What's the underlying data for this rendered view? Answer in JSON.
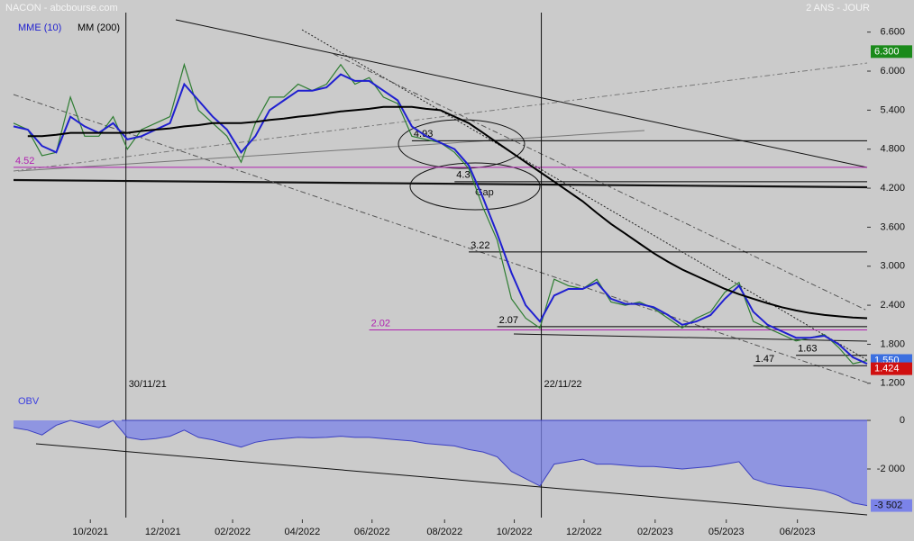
{
  "chart_data": {
    "type": "line",
    "title": "NACON - abcbourse.com",
    "subtitle": "2 ANS - JOUR",
    "x": [
      0,
      1,
      2,
      3,
      4,
      5,
      6,
      7,
      8,
      9,
      10,
      11,
      12,
      13,
      14,
      15,
      16,
      17,
      18,
      19,
      20,
      21,
      22,
      23,
      24,
      25,
      26,
      27,
      28,
      29,
      30,
      31,
      32,
      33,
      34,
      35,
      36,
      37,
      38,
      39,
      40,
      41,
      42,
      43,
      44,
      45,
      46,
      47,
      48,
      49,
      50,
      51,
      52,
      53,
      54,
      55,
      56,
      57,
      58,
      59,
      60
    ],
    "xlim": [
      0,
      60
    ],
    "xticks": [
      {
        "value": 5.4,
        "label": "10/2021"
      },
      {
        "value": 10.5,
        "label": "12/2021"
      },
      {
        "value": 15.4,
        "label": "02/2022"
      },
      {
        "value": 20.3,
        "label": "04/2022"
      },
      {
        "value": 25.2,
        "label": "06/2022"
      },
      {
        "value": 30.3,
        "label": "08/2022"
      },
      {
        "value": 35.2,
        "label": "10/2022"
      },
      {
        "value": 40.1,
        "label": "12/2022"
      },
      {
        "value": 45.1,
        "label": "02/2023"
      },
      {
        "value": 50.1,
        "label": "05/2023"
      },
      {
        "value": 55.1,
        "label": "06/2023"
      }
    ],
    "ylim": [
      1.1,
      6.9
    ],
    "yticks": [
      {
        "value": 1.2,
        "label": "1.200"
      },
      {
        "value": 1.8,
        "label": "1.800"
      },
      {
        "value": 2.4,
        "label": "2.400"
      },
      {
        "value": 3.0,
        "label": "3.000"
      },
      {
        "value": 3.6,
        "label": "3.600"
      },
      {
        "value": 4.2,
        "label": "4.200"
      },
      {
        "value": 4.8,
        "label": "4.800"
      },
      {
        "value": 5.4,
        "label": "5.400"
      },
      {
        "value": 6.0,
        "label": "6.000"
      },
      {
        "value": 6.6,
        "label": "6.600"
      }
    ],
    "y2lim": [
      -4000,
      1000
    ],
    "y2ticks": [
      0,
      {
        "value": -2000,
        "label": "-2 000"
      }
    ],
    "series": [
      {
        "color": "#2e7d32",
        "values": [
          5.2,
          5.1,
          4.7,
          4.75,
          5.6,
          5.0,
          5.0,
          5.3,
          4.8,
          5.1,
          5.2,
          5.3,
          6.1,
          5.4,
          5.2,
          5.0,
          4.6,
          5.2,
          5.6,
          5.6,
          5.8,
          5.7,
          5.8,
          6.1,
          5.8,
          5.9,
          5.6,
          5.5,
          5.0,
          4.95,
          4.9,
          4.75,
          4.5,
          3.9,
          3.4,
          2.5,
          2.2,
          2.05,
          2.8,
          2.7,
          2.65,
          2.8,
          2.45,
          2.4,
          2.45,
          2.35,
          2.2,
          2.05,
          2.2,
          2.3,
          2.6,
          2.75,
          2.15,
          2.05,
          1.95,
          1.85,
          1.9,
          1.95,
          1.75,
          1.5,
          1.55
        ]
      },
      {
        "name": "MME (10)",
        "color": "#1f1fd0",
        "values": [
          5.15,
          5.1,
          4.85,
          4.75,
          5.3,
          5.15,
          5.05,
          5.2,
          4.95,
          5.0,
          5.1,
          5.2,
          5.8,
          5.55,
          5.3,
          5.1,
          4.75,
          5.0,
          5.4,
          5.55,
          5.7,
          5.7,
          5.75,
          5.95,
          5.85,
          5.85,
          5.7,
          5.55,
          5.15,
          5.0,
          4.9,
          4.8,
          4.55,
          4.05,
          3.5,
          2.9,
          2.4,
          2.15,
          2.55,
          2.65,
          2.65,
          2.75,
          2.5,
          2.42,
          2.42,
          2.37,
          2.25,
          2.1,
          2.15,
          2.25,
          2.5,
          2.7,
          2.3,
          2.1,
          2.0,
          1.9,
          1.9,
          1.93,
          1.8,
          1.6,
          1.5
        ]
      },
      {
        "name": "MM (200)",
        "color": "#000000",
        "values": [
          null,
          5.0,
          5.0,
          5.02,
          5.05,
          5.05,
          5.05,
          5.05,
          5.05,
          5.08,
          5.1,
          5.12,
          5.15,
          5.17,
          5.2,
          5.2,
          5.2,
          5.22,
          5.25,
          5.27,
          5.3,
          5.32,
          5.35,
          5.38,
          5.4,
          5.42,
          5.45,
          5.45,
          5.45,
          5.42,
          5.4,
          5.3,
          5.2,
          5.05,
          4.9,
          4.75,
          4.6,
          4.45,
          4.3,
          4.15,
          4.0,
          3.82,
          3.65,
          3.5,
          3.35,
          3.2,
          3.07,
          2.95,
          2.85,
          2.75,
          2.65,
          2.57,
          2.5,
          2.43,
          2.37,
          2.32,
          2.28,
          2.25,
          2.23,
          2.21,
          2.2
        ]
      },
      {
        "name": "OBV",
        "axis": "y2",
        "color": "#7b83e8",
        "values": [
          -300,
          -400,
          -600,
          -200,
          0,
          -150,
          -300,
          0,
          -700,
          -800,
          -750,
          -650,
          -400,
          -700,
          -800,
          -950,
          -1100,
          -900,
          -800,
          -750,
          -700,
          -720,
          -700,
          -650,
          -700,
          -700,
          -750,
          -800,
          -850,
          -950,
          -1000,
          -1050,
          -1200,
          -1300,
          -1500,
          -2100,
          -2400,
          -2700,
          -1800,
          -1700,
          -1600,
          -1800,
          -1800,
          -1850,
          -1900,
          -1900,
          -1950,
          -2000,
          -1950,
          -1900,
          -1800,
          -1700,
          -2400,
          -2600,
          -2700,
          -2750,
          -2800,
          -2900,
          -3100,
          -3400,
          -3502
        ]
      }
    ],
    "price_labels": [
      {
        "value": 6.3,
        "label": "6.300",
        "color": "#1a8a1a"
      },
      {
        "value": 1.55,
        "label": "1.550",
        "color": "#3b6fe0"
      },
      {
        "value": 1.424,
        "label": "1.424",
        "color": "#d01010"
      }
    ],
    "y2_label": {
      "value": -3502,
      "label": "-3 502"
    },
    "levels": [
      {
        "value": 4.52,
        "from": 0,
        "color": "#b020b0"
      },
      {
        "value": 4.93,
        "from": 28,
        "color": "#000000"
      },
      {
        "value": 4.3,
        "from": 31,
        "color": "#000000"
      },
      {
        "value": 3.22,
        "from": 32,
        "color": "#000000"
      },
      {
        "value": 2.07,
        "from": 34,
        "color": "#000000"
      },
      {
        "value": 2.02,
        "from": 25,
        "color": "#b020b0"
      },
      {
        "value": 1.63,
        "from": 55,
        "color": "#000000"
      },
      {
        "value": 1.47,
        "from": 52,
        "color": "#000000"
      }
    ],
    "events": [
      {
        "x": 7.9,
        "label": "30/11/21"
      },
      {
        "x": 37.1,
        "label": "22/11/22"
      }
    ],
    "annotation": "Gap"
  }
}
